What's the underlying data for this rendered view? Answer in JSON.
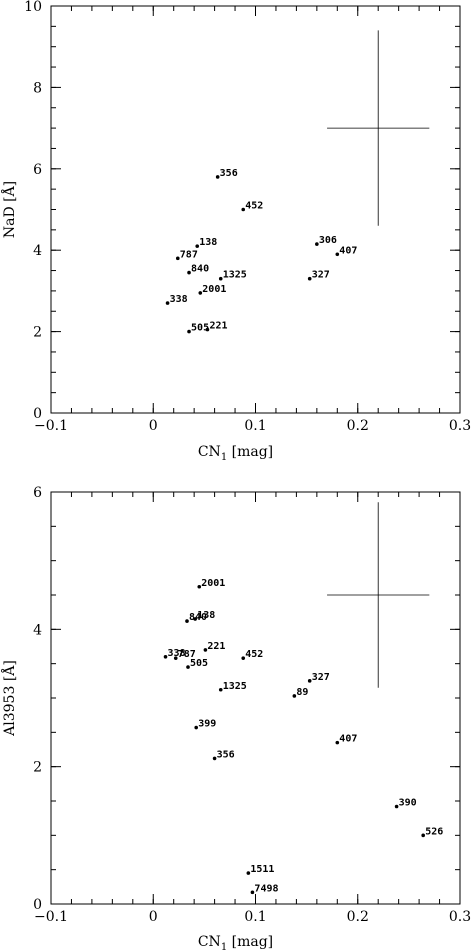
{
  "chart_data": [
    {
      "type": "scatter",
      "xlabel": "CN",
      "xlabel_sub": "1",
      "xlabel_unit": " [mag]",
      "ylabel": "NaD [Å]",
      "xlim": [
        -0.1,
        0.3
      ],
      "ylim": [
        0,
        10
      ],
      "xticks": [
        -0.1,
        0,
        0.1,
        0.2,
        0.3
      ],
      "xtick_labels": [
        "−0.1",
        "0",
        "0.1",
        "0.2",
        "0.3"
      ],
      "yticks": [
        0,
        2,
        4,
        6,
        8,
        10
      ],
      "ytick_labels": [
        "0",
        "2",
        "4",
        "6",
        "8",
        "10"
      ],
      "error_bar": {
        "x": 0.22,
        "y": 7.0,
        "xerr": 0.05,
        "yerr": 2.4
      },
      "points": [
        {
          "label": "356",
          "x": 0.063,
          "y": 5.8
        },
        {
          "label": "452",
          "x": 0.088,
          "y": 5.0
        },
        {
          "label": "306",
          "x": 0.16,
          "y": 4.15
        },
        {
          "label": "407",
          "x": 0.18,
          "y": 3.9
        },
        {
          "label": "138",
          "x": 0.043,
          "y": 4.1
        },
        {
          "label": "787",
          "x": 0.024,
          "y": 3.8
        },
        {
          "label": "840",
          "x": 0.035,
          "y": 3.45
        },
        {
          "label": "1325",
          "x": 0.066,
          "y": 3.3
        },
        {
          "label": "327",
          "x": 0.153,
          "y": 3.3
        },
        {
          "label": "2001",
          "x": 0.046,
          "y": 2.95
        },
        {
          "label": "338",
          "x": 0.014,
          "y": 2.7
        },
        {
          "label": "505",
          "x": 0.035,
          "y": 2.0
        },
        {
          "label": "221",
          "x": 0.053,
          "y": 2.05
        }
      ]
    },
    {
      "type": "scatter",
      "xlabel": "CN",
      "xlabel_sub": "1",
      "xlabel_unit": " [mag]",
      "ylabel": "Al3953 [Å]",
      "xlim": [
        -0.1,
        0.3
      ],
      "ylim": [
        0,
        6
      ],
      "xticks": [
        -0.1,
        0,
        0.1,
        0.2,
        0.3
      ],
      "xtick_labels": [
        "−0.1",
        "0",
        "0.1",
        "0.2",
        "0.3"
      ],
      "yticks": [
        0,
        2,
        4,
        6
      ],
      "ytick_labels": [
        "0",
        "2",
        "4",
        "6"
      ],
      "error_bar": {
        "x": 0.22,
        "y": 4.5,
        "xerr": 0.05,
        "yerr": 1.35
      },
      "points": [
        {
          "label": "2001",
          "x": 0.045,
          "y": 4.62
        },
        {
          "label": "138",
          "x": 0.041,
          "y": 4.15
        },
        {
          "label": "840",
          "x": 0.033,
          "y": 4.12
        },
        {
          "label": "221",
          "x": 0.051,
          "y": 3.7
        },
        {
          "label": "338",
          "x": 0.012,
          "y": 3.6
        },
        {
          "label": "787",
          "x": 0.022,
          "y": 3.58
        },
        {
          "label": "505",
          "x": 0.034,
          "y": 3.45
        },
        {
          "label": "452",
          "x": 0.088,
          "y": 3.58
        },
        {
          "label": "327",
          "x": 0.153,
          "y": 3.25
        },
        {
          "label": "1325",
          "x": 0.066,
          "y": 3.12
        },
        {
          "label": "89",
          "x": 0.138,
          "y": 3.03
        },
        {
          "label": "399",
          "x": 0.042,
          "y": 2.57
        },
        {
          "label": "407",
          "x": 0.18,
          "y": 2.35
        },
        {
          "label": "356",
          "x": 0.06,
          "y": 2.12
        },
        {
          "label": "390",
          "x": 0.238,
          "y": 1.42
        },
        {
          "label": "526",
          "x": 0.264,
          "y": 1.0
        },
        {
          "label": "1511",
          "x": 0.093,
          "y": 0.45
        },
        {
          "label": "7498",
          "x": 0.097,
          "y": 0.17
        }
      ]
    }
  ]
}
